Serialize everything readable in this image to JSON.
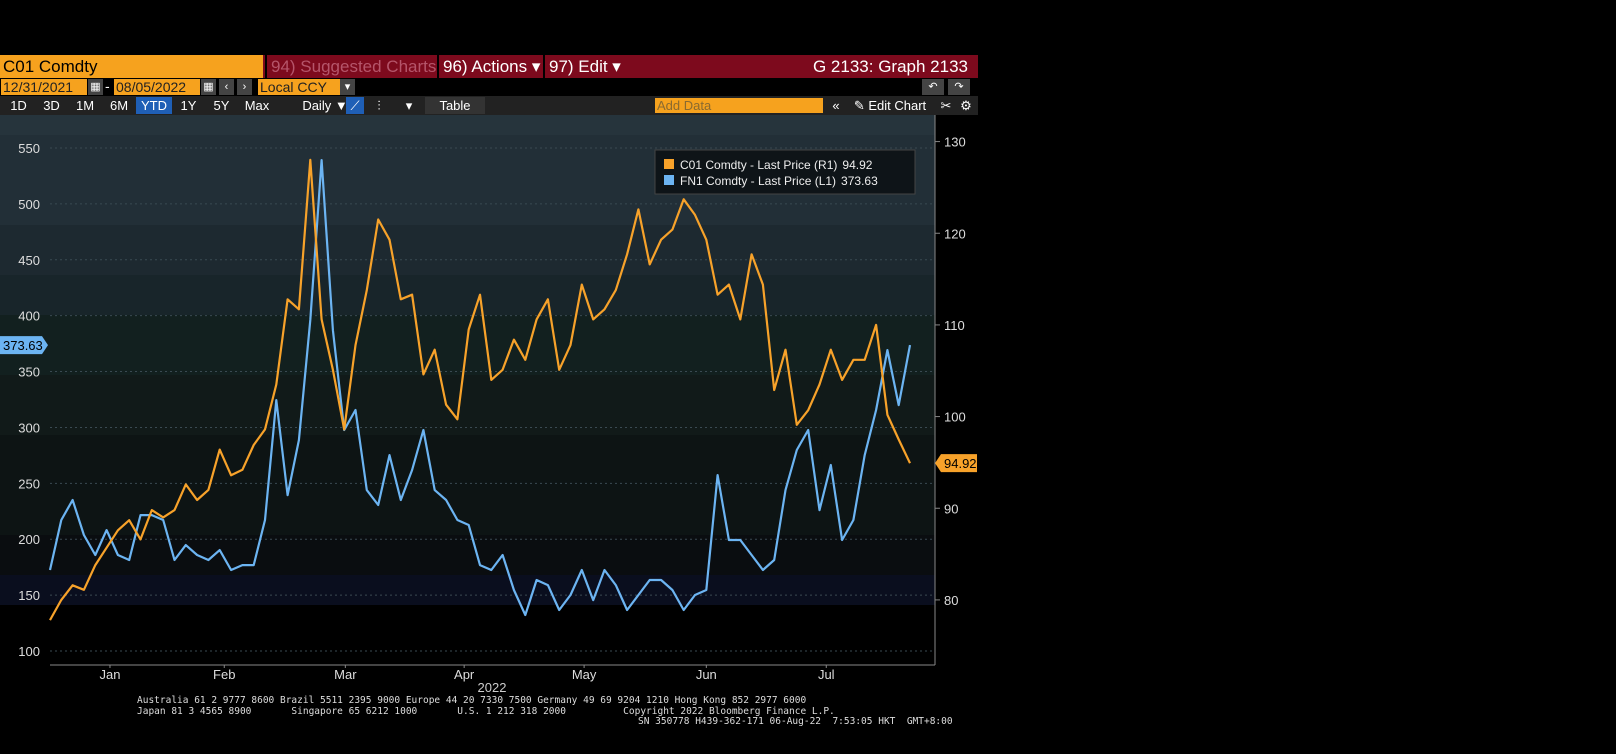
{
  "header": {
    "security": "C01 Comdty",
    "menus": [
      "94) Suggested Charts",
      "96) Actions ▾",
      "97) Edit ▾"
    ],
    "graph": "G 2133: Graph 2133"
  },
  "range": {
    "start": "12/31/2021",
    "end": "08/05/2022",
    "currency": "Local CCY"
  },
  "toolbar": {
    "periods": [
      "1D",
      "3D",
      "1M",
      "6M",
      "YTD",
      "1Y",
      "5Y",
      "Max"
    ],
    "active": "YTD",
    "frequency": "Daily ▼",
    "table": "Table",
    "add_data": "Add Data",
    "edit_chart": "Edit Chart"
  },
  "chart_data": {
    "type": "line",
    "xlabel": "2022",
    "xlim": [
      0,
      76
    ],
    "xticks": [
      {
        "value": 5.3,
        "label": "Jan"
      },
      {
        "value": 15.4,
        "label": "Feb"
      },
      {
        "value": 26.1,
        "label": "Mar"
      },
      {
        "value": 36.6,
        "label": "Apr"
      },
      {
        "value": 47.2,
        "label": "May"
      },
      {
        "value": 58.0,
        "label": "Jun"
      },
      {
        "value": 68.6,
        "label": "Jul"
      }
    ],
    "ylim": [
      87.5,
      579.5
    ],
    "yticks": [
      100,
      150,
      200,
      250,
      300,
      350,
      400,
      450,
      500,
      550
    ],
    "y2lim": [
      72.9,
      132.9
    ],
    "y2ticks": [
      80,
      90,
      100,
      110,
      120,
      130
    ],
    "grid": true,
    "series": [
      {
        "name": "C01 Comdty - Last Price (R1)",
        "color": "#f7a22a",
        "axis": "y2",
        "values": [
          77.8,
          80.0,
          81.6,
          81.1,
          83.8,
          85.7,
          87.6,
          88.7,
          86.6,
          89.8,
          89.0,
          89.8,
          92.6,
          90.9,
          92.0,
          96.4,
          93.6,
          94.2,
          96.9,
          98.6,
          103.5,
          112.8,
          111.7,
          128.0,
          110.6,
          105.1,
          98.6,
          107.8,
          113.8,
          121.5,
          119.3,
          112.8,
          113.3,
          104.6,
          107.3,
          101.3,
          99.7,
          109.5,
          113.3,
          104.0,
          105.1,
          108.4,
          106.2,
          110.6,
          112.8,
          105.1,
          107.8,
          114.4,
          110.6,
          111.7,
          113.8,
          117.7,
          122.6,
          116.6,
          119.3,
          120.4,
          123.7,
          122.0,
          119.3,
          113.3,
          114.4,
          110.6,
          117.7,
          114.4,
          102.9,
          107.3,
          99.1,
          100.7,
          103.5,
          107.3,
          104.0,
          106.2,
          106.2,
          110.0,
          100.2,
          97.5,
          94.92
        ]
      },
      {
        "name": "FN1 Comdty - Last Price (L1)",
        "color": "#6cb4f2",
        "axis": "y",
        "values": [
          172.5,
          217.2,
          235.1,
          203.8,
          185.9,
          208.2,
          185.9,
          181.4,
          221.6,
          221.6,
          217.2,
          181.4,
          194.8,
          185.9,
          181.4,
          190.3,
          172.5,
          176.9,
          176.9,
          217.2,
          324.5,
          239.5,
          288.7,
          396.1,
          539.2,
          387.1,
          297.7,
          315.6,
          244.0,
          230.6,
          275.3,
          235.1,
          261.9,
          297.7,
          244.0,
          235.1,
          217.2,
          212.7,
          176.9,
          172.5,
          185.9,
          154.6,
          132.2,
          163.5,
          159.0,
          136.7,
          150.1,
          172.5,
          145.6,
          172.5,
          159.0,
          136.7,
          150.1,
          163.5,
          163.5,
          154.6,
          136.7,
          150.1,
          154.6,
          257.4,
          199.3,
          199.3,
          185.9,
          172.5,
          181.4,
          244.0,
          279.8,
          297.7,
          226.1,
          266.4,
          199.3,
          217.2,
          275.3,
          315.6,
          369.2,
          320.0,
          373.63
        ]
      }
    ]
  },
  "footer": [
    "Australia 61 2 9777 8600 Brazil 5511 2395 9000 Europe 44 20 7330 7500 Germany 49 69 9204 1210 Hong Kong 852 2977 6000",
    "Japan 81 3 4565 8900       Singapore 65 6212 1000       U.S. 1 212 318 2000          Copyright 2022 Bloomberg Finance L.P.",
    "SN 350778 H439-362-171 06-Aug-22  7:53:05 HKT  GMT+8:00"
  ]
}
